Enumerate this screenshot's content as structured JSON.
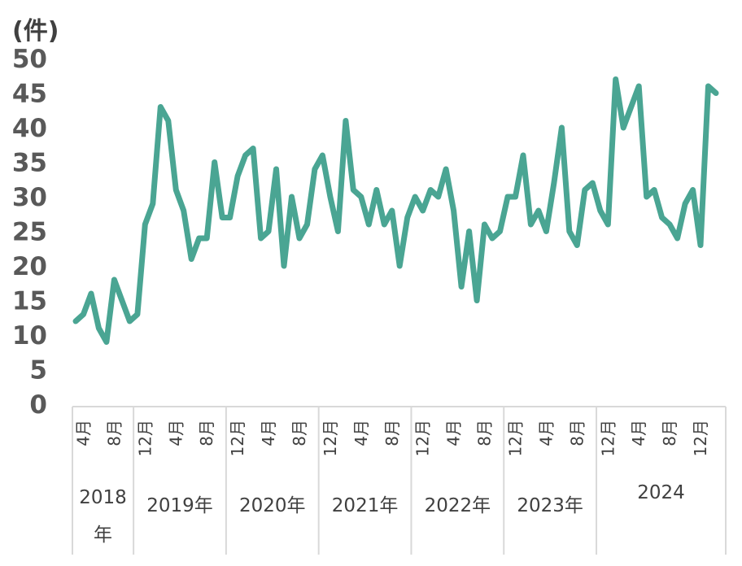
{
  "chart_data": {
    "type": "line",
    "ylabel": "(件)",
    "ylim": [
      0,
      50
    ],
    "yticks": [
      "0",
      "5",
      "10",
      "15",
      "20",
      "25",
      "30",
      "35",
      "40",
      "45",
      "50"
    ],
    "line_color": "#4aa593",
    "x_tick_labels": [
      {
        "index": 1,
        "label": "4月"
      },
      {
        "index": 5,
        "label": "8月"
      },
      {
        "index": 9,
        "label": "12月"
      },
      {
        "index": 13,
        "label": "4月"
      },
      {
        "index": 17,
        "label": "8月"
      },
      {
        "index": 21,
        "label": "12月"
      },
      {
        "index": 25,
        "label": "4月"
      },
      {
        "index": 29,
        "label": "8月"
      },
      {
        "index": 33,
        "label": "12月"
      },
      {
        "index": 37,
        "label": "4月"
      },
      {
        "index": 41,
        "label": "8月"
      },
      {
        "index": 45,
        "label": "12月"
      },
      {
        "index": 49,
        "label": "4月"
      },
      {
        "index": 53,
        "label": "8月"
      },
      {
        "index": 57,
        "label": "12月"
      },
      {
        "index": 61,
        "label": "4月"
      },
      {
        "index": 65,
        "label": "8月"
      },
      {
        "index": 69,
        "label": "12月"
      },
      {
        "index": 73,
        "label": "4月"
      },
      {
        "index": 77,
        "label": "8月"
      },
      {
        "index": 81,
        "label": "12月"
      }
    ],
    "year_groups": [
      {
        "label": "2018\n年",
        "start": 0,
        "end": 8
      },
      {
        "label": "2019年",
        "start": 8,
        "end": 20
      },
      {
        "label": "2020年",
        "start": 20,
        "end": 32
      },
      {
        "label": "2021年",
        "start": 32,
        "end": 44
      },
      {
        "label": "2022年",
        "start": 44,
        "end": 56
      },
      {
        "label": "2023年",
        "start": 56,
        "end": 68
      },
      {
        "label": "2024",
        "start": 68,
        "end": 80
      }
    ],
    "values": [
      12,
      13,
      16,
      11,
      9,
      18,
      15,
      12,
      13,
      26,
      29,
      43,
      41,
      31,
      28,
      21,
      24,
      24,
      35,
      27,
      27,
      33,
      36,
      37,
      24,
      25,
      34,
      20,
      30,
      24,
      26,
      34,
      36,
      30,
      25,
      41,
      31,
      30,
      26,
      31,
      26,
      28,
      20,
      27,
      30,
      28,
      31,
      30,
      34,
      28,
      17,
      25,
      15,
      26,
      24,
      25,
      30,
      30,
      36,
      26,
      28,
      25,
      32,
      40,
      25,
      23,
      31,
      32,
      28,
      26,
      47,
      40,
      43,
      46,
      30,
      31,
      27,
      26,
      24,
      29,
      31,
      23,
      46,
      45
    ]
  }
}
